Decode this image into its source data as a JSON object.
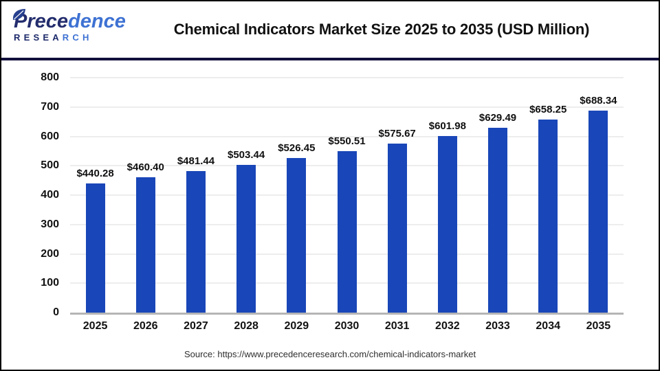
{
  "header": {
    "logo": {
      "name_part1": "Prece",
      "name_part2": "dence",
      "subtitle_part1": "RESEA",
      "subtitle_part2": "RCH"
    },
    "title": "Chemical Indicators Market Size 2025 to 2035 (USD Million)"
  },
  "chart_data": {
    "type": "bar",
    "title": "Chemical Indicators Market Size 2025 to 2035 (USD Million)",
    "categories": [
      "2025",
      "2026",
      "2027",
      "2028",
      "2029",
      "2030",
      "2031",
      "2032",
      "2033",
      "2034",
      "2035"
    ],
    "values": [
      440.28,
      460.4,
      481.44,
      503.44,
      526.45,
      550.51,
      575.67,
      601.98,
      629.49,
      658.25,
      688.34
    ],
    "value_labels": [
      "$440.28",
      "$460.40",
      "$481.44",
      "$503.44",
      "$526.45",
      "$550.51",
      "$575.67",
      "$601.98",
      "$629.49",
      "$658.25",
      "$688.34"
    ],
    "xlabel": "",
    "ylabel": "",
    "ylim": [
      0,
      800
    ],
    "yticks": [
      0,
      100,
      200,
      300,
      400,
      500,
      600,
      700,
      800
    ],
    "grid": true,
    "legend": "none",
    "bar_color": "#1946b8"
  },
  "footer": {
    "source": "Source: https://www.precedenceresearch.com/chemical-indicators-market"
  },
  "colors": {
    "bar": "#1946b8",
    "header_divider": "#12103d",
    "gridline": "#ededed",
    "axis_line": "#b5b5b5",
    "text": "#111111",
    "logo_dark": "#232d6d",
    "logo_light": "#3e72d3",
    "background": "#ffffff",
    "border": "#000000"
  }
}
